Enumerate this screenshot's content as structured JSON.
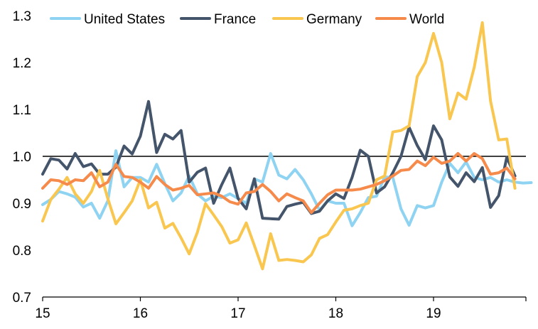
{
  "chart_data": {
    "type": "line",
    "title": "",
    "xlabel": "",
    "ylabel": "",
    "ylim": [
      0.7,
      1.3
    ],
    "yticks": [
      0.7,
      0.8,
      0.9,
      1.0,
      1.1,
      1.2,
      1.3
    ],
    "ytick_labels": [
      "0.7",
      "0.8",
      "0.9",
      "1.0",
      "1.1",
      "1.2",
      "1.3"
    ],
    "xlim": [
      15,
      19.875
    ],
    "xticks": [
      15,
      16,
      17,
      18,
      19
    ],
    "xtick_labels": [
      "15",
      "16",
      "17",
      "18",
      "19"
    ],
    "x_step": 0.0833333,
    "reference_line": 1.0,
    "grid": false,
    "legend_position": "top",
    "series": [
      {
        "name": "United States",
        "color": "#8FD3F2",
        "values": [
          0.897,
          0.908,
          0.925,
          0.92,
          0.913,
          0.892,
          0.9,
          0.868,
          0.905,
          1.012,
          0.935,
          0.955,
          0.955,
          0.945,
          0.983,
          0.942,
          0.905,
          0.922,
          0.958,
          0.92,
          0.905,
          0.915,
          0.912,
          0.92,
          0.91,
          0.9,
          0.952,
          0.945,
          1.006,
          0.96,
          0.952,
          0.972,
          0.95,
          0.92,
          0.885,
          0.905,
          0.9,
          0.9,
          0.852,
          0.88,
          0.912,
          0.915,
          0.956,
          0.955,
          0.888,
          0.853,
          0.895,
          0.89,
          0.895,
          0.945,
          0.985,
          0.965,
          0.988,
          0.955,
          0.95,
          0.955,
          0.945,
          0.95,
          0.945,
          0.943,
          0.944
        ]
      },
      {
        "name": "France",
        "color": "#44546A",
        "values": [
          0.962,
          0.995,
          0.992,
          0.973,
          1.006,
          0.978,
          0.984,
          0.962,
          0.962,
          0.977,
          1.022,
          1.005,
          1.043,
          1.117,
          1.008,
          1.047,
          1.037,
          1.055,
          0.945,
          0.966,
          0.975,
          0.9,
          0.94,
          0.975,
          0.91,
          0.888,
          0.952,
          0.868,
          0.867,
          0.866,
          0.893,
          0.898,
          0.902,
          0.878,
          0.883,
          0.905,
          0.92,
          0.91,
          0.955,
          1.013,
          1.0,
          0.922,
          0.935,
          0.965,
          1.0,
          1.062,
          1.023,
          0.993,
          1.065,
          1.035,
          0.956,
          0.936,
          0.965,
          0.946,
          0.976,
          0.891,
          0.916,
          0.998,
          0.958
        ]
      },
      {
        "name": "Germany",
        "color": "#F9C74F",
        "values": [
          0.862,
          0.908,
          0.93,
          0.955,
          0.92,
          0.9,
          0.925,
          0.97,
          0.91,
          0.856,
          0.88,
          0.905,
          0.95,
          0.89,
          0.902,
          0.847,
          0.857,
          0.826,
          0.792,
          0.838,
          0.899,
          0.875,
          0.85,
          0.815,
          0.822,
          0.858,
          0.81,
          0.76,
          0.835,
          0.778,
          0.78,
          0.778,
          0.775,
          0.79,
          0.825,
          0.833,
          0.86,
          0.885,
          0.888,
          0.895,
          0.9,
          0.95,
          0.958,
          1.052,
          1.055,
          1.065,
          1.17,
          1.2,
          1.262,
          1.2,
          1.08,
          1.135,
          1.122,
          1.19,
          1.285,
          1.118,
          1.035,
          1.037,
          0.932
        ]
      },
      {
        "name": "World",
        "color": "#F58A4B",
        "values": [
          0.932,
          0.95,
          0.948,
          0.94,
          0.95,
          0.948,
          0.965,
          0.935,
          0.945,
          0.983,
          0.957,
          0.955,
          0.945,
          0.932,
          0.957,
          0.94,
          0.928,
          0.932,
          0.938,
          0.918,
          0.92,
          0.922,
          0.915,
          0.903,
          0.898,
          0.922,
          0.925,
          0.94,
          0.925,
          0.905,
          0.92,
          0.912,
          0.905,
          0.88,
          0.9,
          0.918,
          0.928,
          0.928,
          0.928,
          0.93,
          0.935,
          0.94,
          0.948,
          0.958,
          0.97,
          0.972,
          0.99,
          0.98,
          0.998,
          0.985,
          0.99,
          1.006,
          0.99,
          1.006,
          0.995,
          0.962,
          0.965,
          0.975,
          0.952
        ]
      }
    ]
  }
}
